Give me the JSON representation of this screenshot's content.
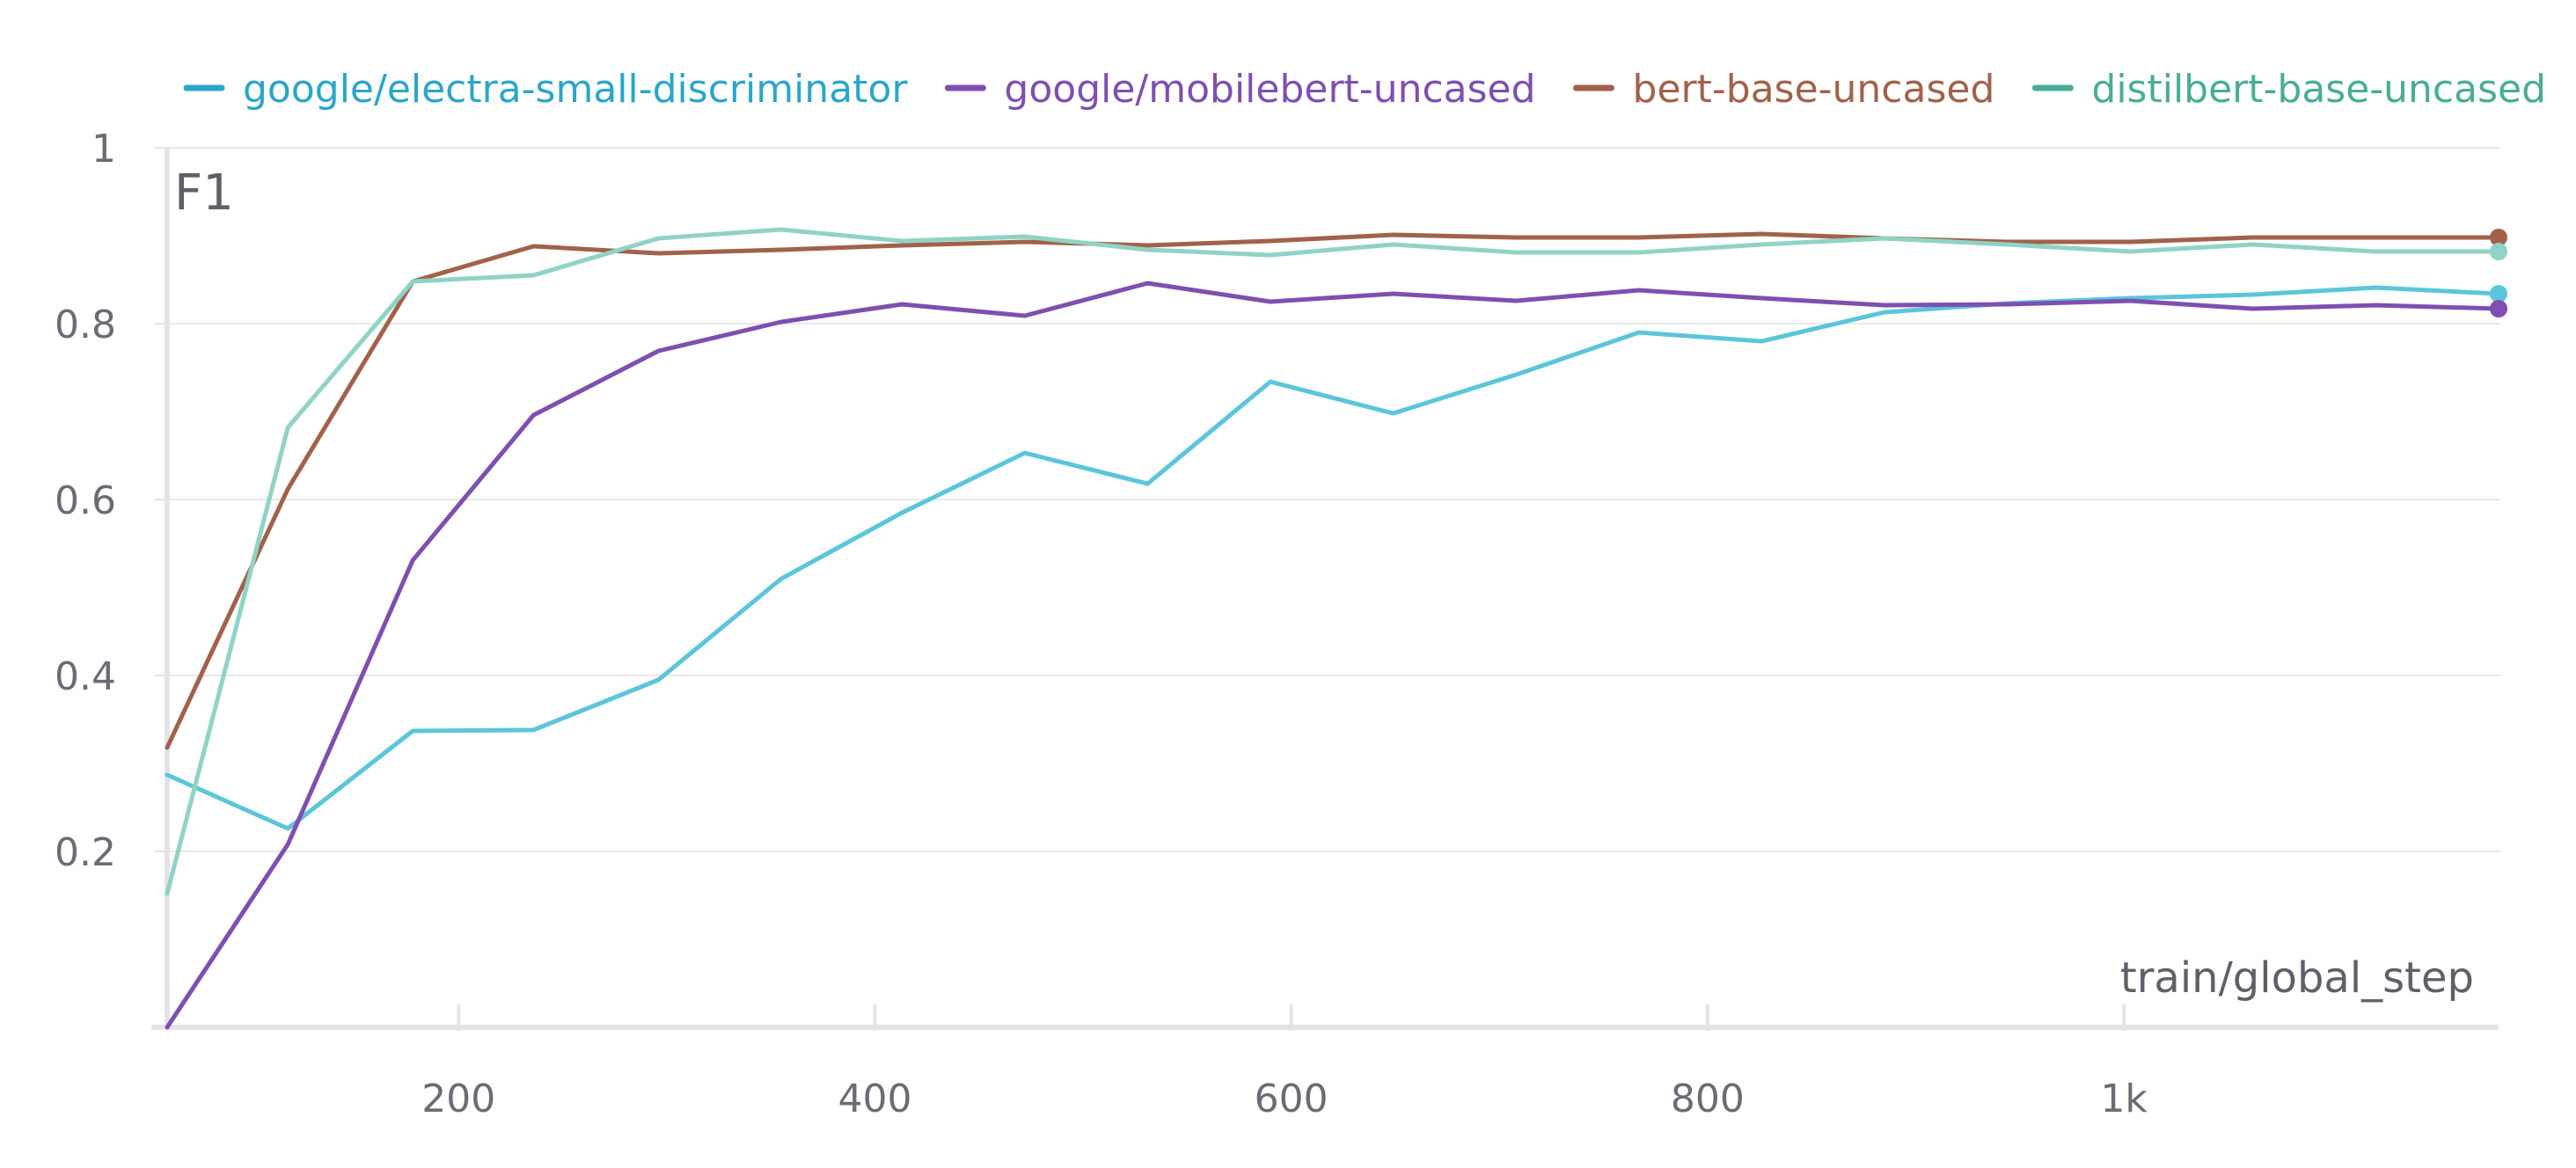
{
  "chart_data": {
    "type": "line",
    "title": "F1",
    "xlabel": "train/global_step",
    "ylabel": "",
    "xlim": [
      60,
      1180
    ],
    "ylim": [
      0.0,
      1.0
    ],
    "grid": true,
    "legend_position": "top",
    "x_ticks": [
      {
        "value": 200,
        "label": "200"
      },
      {
        "value": 400,
        "label": "400"
      },
      {
        "value": 600,
        "label": "600"
      },
      {
        "value": 800,
        "label": "800"
      },
      {
        "value": 1000,
        "label": "1k"
      }
    ],
    "y_ticks": [
      {
        "value": 0.2,
        "label": "0.2"
      },
      {
        "value": 0.4,
        "label": "0.4"
      },
      {
        "value": 0.6,
        "label": "0.6"
      },
      {
        "value": 0.8,
        "label": "0.8"
      },
      {
        "value": 1.0,
        "label": "1"
      }
    ],
    "x": [
      60,
      118,
      178,
      236,
      296,
      355,
      413,
      472,
      531,
      590,
      649,
      708,
      767,
      826,
      885,
      944,
      1003,
      1062,
      1121,
      1180
    ],
    "series": [
      {
        "name": "google/electra-small-discriminator",
        "color": "#5bc5da",
        "legend_color": "#2ba5c9",
        "values": [
          0.287,
          0.226,
          0.337,
          0.338,
          0.395,
          0.51,
          0.585,
          0.653,
          0.618,
          0.734,
          0.698,
          0.742,
          0.79,
          0.78,
          0.813,
          0.823,
          0.829,
          0.833,
          0.841,
          0.834
        ]
      },
      {
        "name": "google/mobilebert-uncased",
        "color": "#7e4fb0",
        "legend_color": "#7e4fb0",
        "values": [
          0.0,
          0.208,
          0.531,
          0.696,
          0.769,
          0.802,
          0.822,
          0.809,
          0.846,
          0.825,
          0.834,
          0.826,
          0.838,
          0.829,
          0.821,
          0.822,
          0.826,
          0.817,
          0.821,
          0.817
        ]
      },
      {
        "name": "bert-base-uncased",
        "color": "#a2614a",
        "legend_color": "#a2614a",
        "values": [
          0.318,
          0.612,
          0.848,
          0.888,
          0.88,
          0.884,
          0.889,
          0.893,
          0.889,
          0.894,
          0.901,
          0.898,
          0.898,
          0.902,
          0.897,
          0.893,
          0.893,
          0.898,
          0.898,
          0.898
        ]
      },
      {
        "name": "distilbert-base-uncased",
        "color": "#8fd3c5",
        "legend_color": "#48ad94",
        "values": [
          0.152,
          0.682,
          0.848,
          0.855,
          0.897,
          0.907,
          0.894,
          0.899,
          0.884,
          0.878,
          0.89,
          0.881,
          0.881,
          0.89,
          0.897,
          0.89,
          0.882,
          0.89,
          0.882,
          0.882
        ]
      }
    ]
  }
}
